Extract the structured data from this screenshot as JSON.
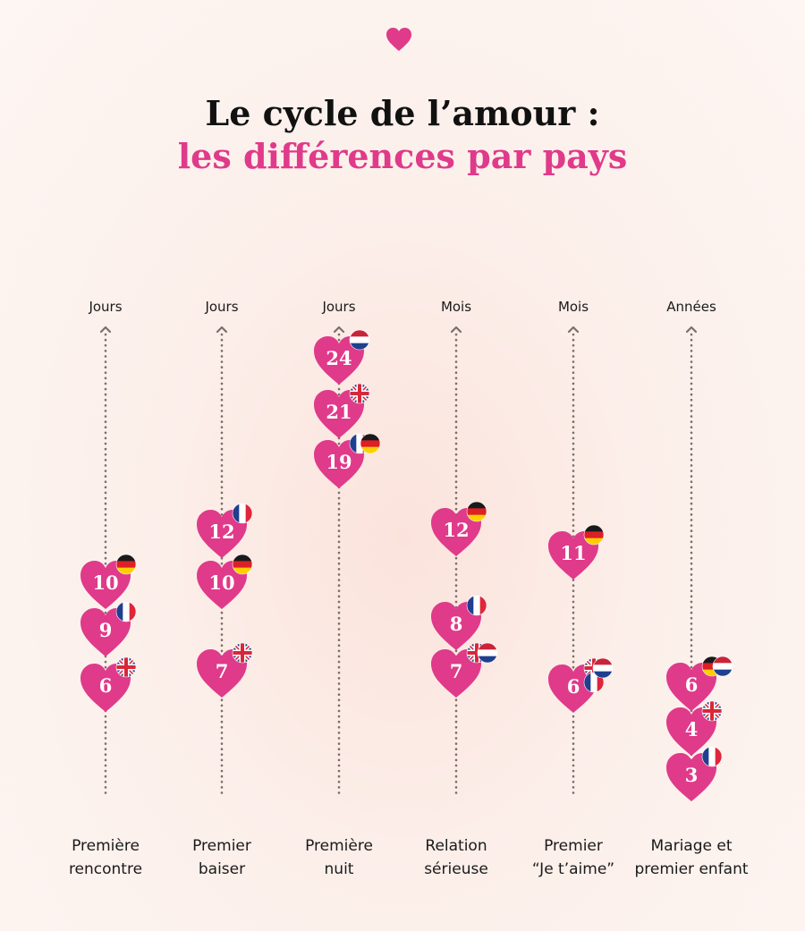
{
  "title": {
    "line1": "Le cycle de l’amour :",
    "line2": "les différences par pays"
  },
  "colors": {
    "heart": "#e03a8a",
    "axis": "#7a6f6a",
    "background": "#fcefea"
  },
  "chart_data": {
    "type": "scatter",
    "markers": "heart",
    "columns": [
      {
        "label_line1": "Première",
        "label_line2": "rencontre",
        "unit": "Jours",
        "points": [
          {
            "value": 10,
            "countries": [
              "germany"
            ]
          },
          {
            "value": 9,
            "countries": [
              "france"
            ]
          },
          {
            "value": 6,
            "countries": [
              "uk"
            ]
          }
        ]
      },
      {
        "label_line1": "Premier",
        "label_line2": "baiser",
        "unit": "Jours",
        "points": [
          {
            "value": 12,
            "countries": [
              "france"
            ]
          },
          {
            "value": 10,
            "countries": [
              "germany"
            ]
          },
          {
            "value": 7,
            "countries": [
              "uk"
            ]
          }
        ]
      },
      {
        "label_line1": "Première",
        "label_line2": "nuit",
        "unit": "Jours",
        "points": [
          {
            "value": 24,
            "countries": [
              "netherlands"
            ]
          },
          {
            "value": 21,
            "countries": [
              "uk"
            ]
          },
          {
            "value": 19,
            "countries": [
              "france",
              "germany"
            ]
          }
        ]
      },
      {
        "label_line1": "Relation",
        "label_line2": "sérieuse",
        "unit": "Mois",
        "points": [
          {
            "value": 12,
            "countries": [
              "germany"
            ]
          },
          {
            "value": 8,
            "countries": [
              "france"
            ]
          },
          {
            "value": 7,
            "countries": [
              "uk",
              "netherlands"
            ]
          }
        ]
      },
      {
        "label_line1": "Premier",
        "label_line2": "“Je t’aime”",
        "unit": "Mois",
        "points": [
          {
            "value": 11,
            "countries": [
              "germany"
            ]
          },
          {
            "value": 6,
            "countries": [
              "uk",
              "france",
              "netherlands"
            ]
          }
        ]
      },
      {
        "label_line1": "Mariage et",
        "label_line2": "premier enfant",
        "unit": "Années",
        "points": [
          {
            "value": 6,
            "countries": [
              "germany",
              "netherlands"
            ]
          },
          {
            "value": 4,
            "countries": [
              "uk"
            ]
          },
          {
            "value": 3,
            "countries": [
              "france"
            ]
          }
        ]
      }
    ]
  }
}
